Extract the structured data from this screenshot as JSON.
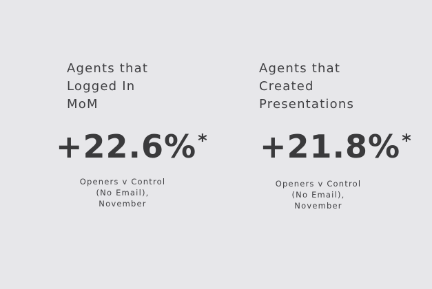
{
  "stats": [
    {
      "label_lines": [
        "Agents that",
        "Logged In",
        "MoM"
      ],
      "value": "+22.6%",
      "asterisk": "*",
      "note_lines": [
        "Openers v Control",
        "(No Email),",
        "November"
      ]
    },
    {
      "label_lines": [
        "Agents that",
        "Created",
        "Presentations"
      ],
      "value": "+21.8%",
      "asterisk": "*",
      "note_lines": [
        "Openers v Control",
        "(No Email),",
        "November"
      ]
    }
  ]
}
